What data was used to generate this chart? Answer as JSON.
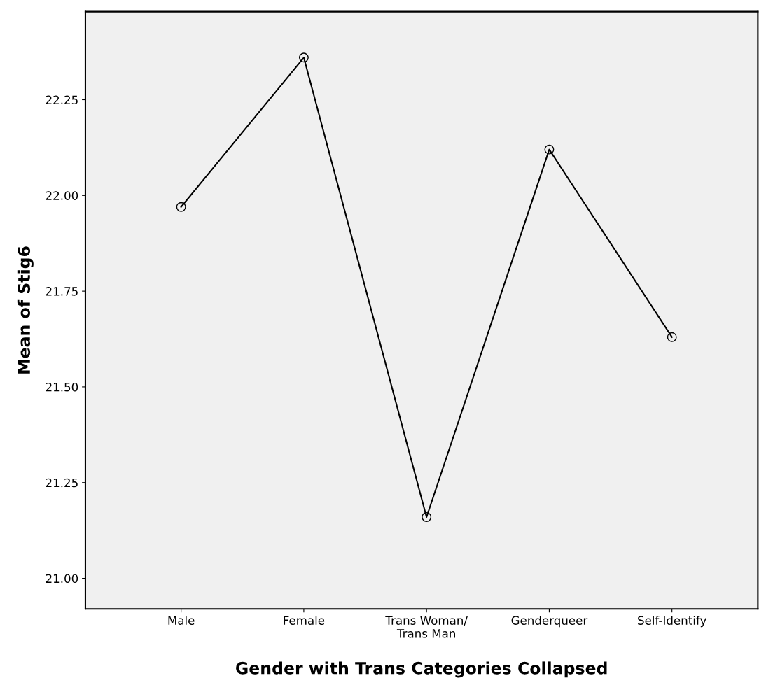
{
  "chart_data": {
    "type": "line",
    "xlabel": "Gender with Trans Categories Collapsed",
    "ylabel": "Mean of Stig6",
    "categories": [
      "Male",
      "Female",
      "Trans Woman/\nTrans Man",
      "Genderqueer",
      "Self-Identify"
    ],
    "series": [
      {
        "color": "#000000",
        "values": [
          21.97,
          22.36,
          21.16,
          22.12,
          21.63
        ]
      }
    ],
    "ylim": [
      20.92,
      22.48
    ],
    "yticks": [
      {
        "value": 21.0,
        "label": "21.00"
      },
      {
        "value": 21.25,
        "label": "21.25"
      },
      {
        "value": 21.5,
        "label": "21.50"
      },
      {
        "value": 21.75,
        "label": "21.75"
      },
      {
        "value": 22.0,
        "label": "22.00"
      },
      {
        "value": 22.25,
        "label": "22.25"
      }
    ],
    "grid": false,
    "legend": false,
    "marker": "circle",
    "line_style": "solid"
  }
}
